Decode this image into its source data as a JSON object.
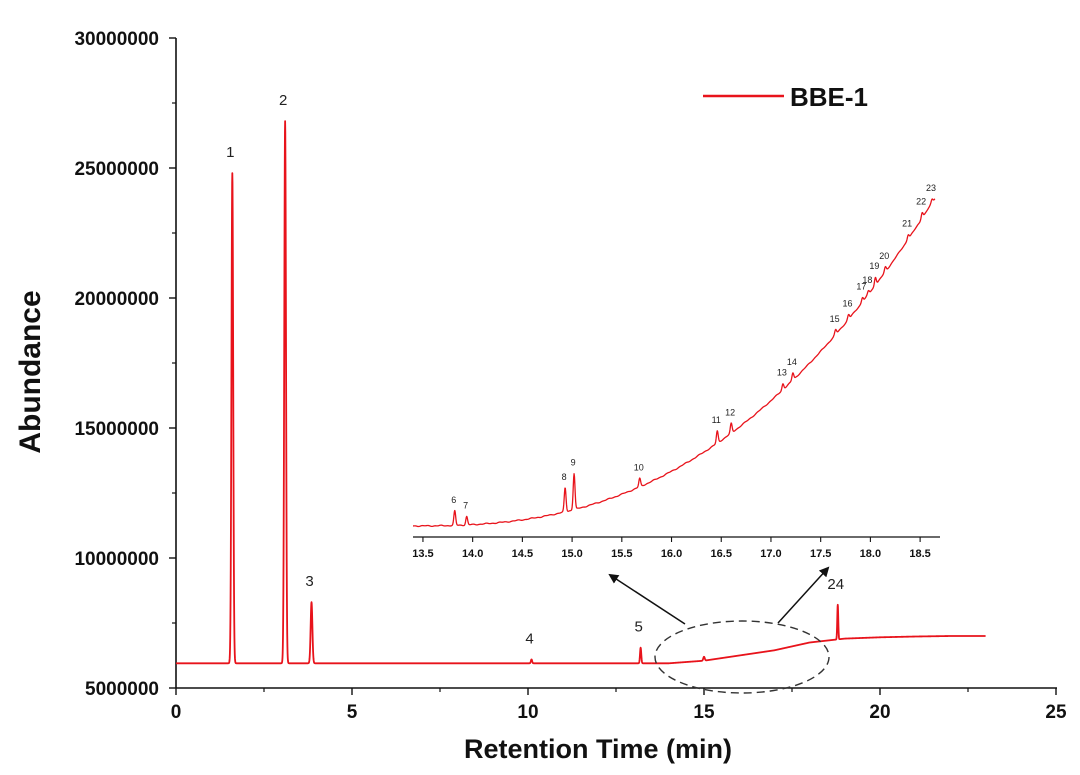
{
  "chart_data": [
    {
      "type": "line",
      "name": "main-chromatogram",
      "xlabel": "Retention Time (min)",
      "ylabel": "Abundance",
      "xlim": [
        0,
        25
      ],
      "ylim": [
        5000000,
        30000000
      ],
      "x_ticks": [
        0,
        5,
        10,
        15,
        20,
        25
      ],
      "y_ticks": [
        5000000,
        10000000,
        15000000,
        20000000,
        25000000,
        30000000
      ],
      "x_tick_labels": [
        "0",
        "5",
        "10",
        "15",
        "20",
        "25"
      ],
      "y_tick_labels": [
        "5000000",
        "10000000",
        "15000000",
        "20000000",
        "25000000",
        "30000000"
      ],
      "legend": {
        "entries": [
          "BBE-1"
        ],
        "position": "top-right"
      },
      "series": [
        {
          "name": "BBE-1",
          "color": "#e8131b",
          "baseline": [
            [
              0,
              5950000
            ],
            [
              14,
              5950000
            ],
            [
              15,
              6050000
            ],
            [
              16,
              6250000
            ],
            [
              17,
              6450000
            ],
            [
              18,
              6750000
            ],
            [
              19,
              6900000
            ],
            [
              20,
              6950000
            ],
            [
              21,
              6980000
            ],
            [
              22,
              7000000
            ],
            [
              23,
              7000000
            ]
          ],
          "peaks": [
            {
              "label": "1",
              "rt": 1.6,
              "height": 24800000,
              "width": 0.07
            },
            {
              "label": "2",
              "rt": 3.1,
              "height": 26800000,
              "width": 0.07
            },
            {
              "label": "3",
              "rt": 3.85,
              "height": 8300000,
              "width": 0.07
            },
            {
              "label": "4",
              "rt": 10.1,
              "height": 6100000,
              "width": 0.05
            },
            {
              "label": "5",
              "rt": 13.2,
              "height": 6550000,
              "width": 0.05
            },
            {
              "label": "",
              "rt": 15.0,
              "height": 6200000,
              "width": 0.06
            },
            {
              "label": "24",
              "rt": 18.8,
              "height": 8200000,
              "width": 0.04
            }
          ]
        }
      ]
    },
    {
      "type": "line",
      "name": "inset-chromatogram",
      "xlim": [
        13.4,
        18.7
      ],
      "x_ticks": [
        13.5,
        14.0,
        14.5,
        15.0,
        15.5,
        16.0,
        16.5,
        17.0,
        17.5,
        18.0,
        18.5
      ],
      "x_tick_labels": [
        "13.5",
        "14.0",
        "14.5",
        "15.0",
        "15.5",
        "16.0",
        "16.5",
        "17.0",
        "17.5",
        "18.0",
        "18.5"
      ],
      "peaks": [
        {
          "label": "6",
          "rt": 13.82,
          "rel": 0.12
        },
        {
          "label": "7",
          "rt": 13.94,
          "rel": 0.07
        },
        {
          "label": "8",
          "rt": 14.93,
          "rel": 0.2
        },
        {
          "label": "9",
          "rt": 15.02,
          "rel": 0.3
        },
        {
          "label": "10",
          "rt": 15.68,
          "rel": 0.07
        },
        {
          "label": "11",
          "rt": 16.46,
          "rel": 0.1
        },
        {
          "label": "12",
          "rt": 16.6,
          "rel": 0.08
        },
        {
          "label": "13",
          "rt": 17.12,
          "rel": 0.05
        },
        {
          "label": "14",
          "rt": 17.22,
          "rel": 0.06
        },
        {
          "label": "15",
          "rt": 17.65,
          "rel": 0.04
        },
        {
          "label": "16",
          "rt": 17.78,
          "rel": 0.04
        },
        {
          "label": "17",
          "rt": 17.92,
          "rel": 0.04
        },
        {
          "label": "18",
          "rt": 17.98,
          "rel": 0.03
        },
        {
          "label": "19",
          "rt": 18.05,
          "rel": 0.07
        },
        {
          "label": "20",
          "rt": 18.15,
          "rel": 0.04
        },
        {
          "label": "21",
          "rt": 18.38,
          "rel": 0.04
        },
        {
          "label": "22",
          "rt": 18.52,
          "rel": 0.05
        },
        {
          "label": "23",
          "rt": 18.62,
          "rel": 0.03
        }
      ]
    }
  ]
}
